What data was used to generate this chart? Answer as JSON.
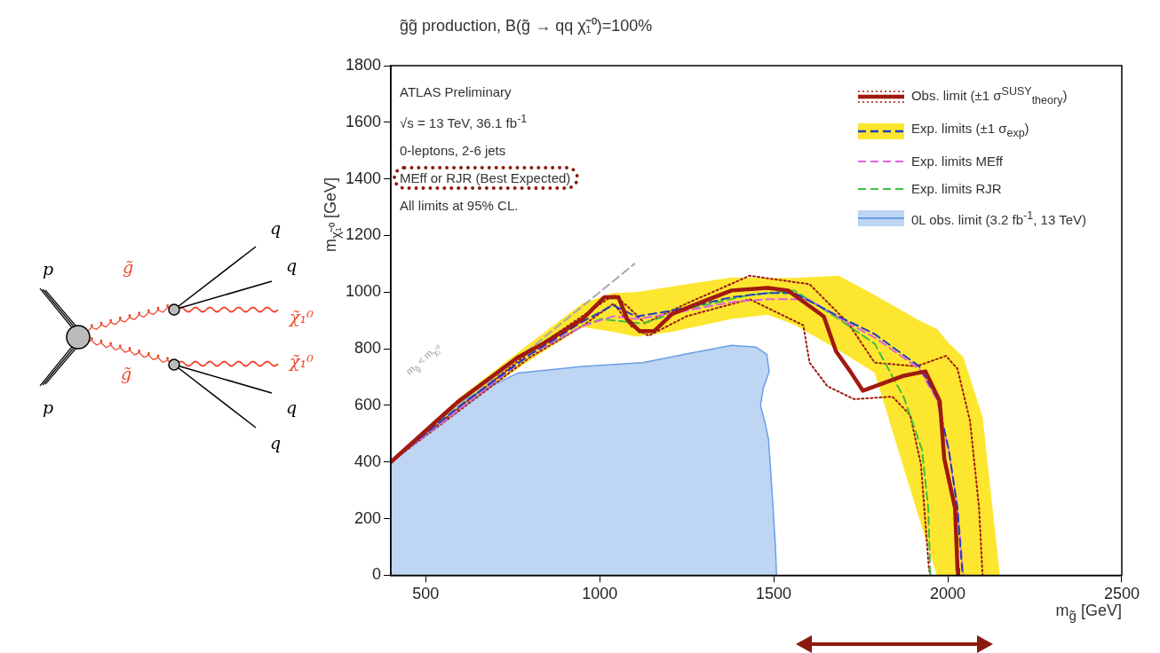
{
  "chart_data": {
    "type": "line",
    "title": "g̃g̃ production, B(g̃ → qq χ̃₁⁰)=100%",
    "xlabel": "m$_{g̃}$ [GeV]",
    "ylabel": "m$_{χ̃₁⁰}$ [GeV]",
    "xlim": [
      400,
      2500
    ],
    "xticks": [
      500,
      1000,
      1500,
      2000,
      2500
    ],
    "ylim": [
      0,
      1800
    ],
    "yticks": [
      0,
      200,
      400,
      600,
      800,
      1000,
      1200,
      1400,
      1600,
      1800
    ],
    "legend": "top right",
    "series": [
      {
        "name": "Obs. limit (±1 σ$^{SUSY}$$_{theory}$)",
        "color": "#a01a10",
        "x": [
          400,
          592,
          764,
          833,
          951,
          1013,
          1054,
          1079,
          1115,
          1156,
          1208,
          1295,
          1379,
          1482,
          1541,
          1644,
          1679,
          1720,
          1756,
          1874,
          1936,
          1977,
          1990,
          2021,
          2028,
          2030
        ],
        "values": [
          400,
          612,
          769,
          815,
          905,
          982,
          982,
          905,
          862,
          862,
          923,
          966,
          1006,
          1015,
          1006,
          914,
          791,
          720,
          652,
          705,
          720,
          615,
          412,
          237,
          22,
          0
        ]
      },
      {
        "name": "Exp. limits (±1 σ$_{exp}$)",
        "color": "#1f3fbf",
        "line_style": "dashed",
        "x": [
          400,
          600,
          800,
          950,
          1038,
          1105,
          1208,
          1379,
          1482,
          1559,
          1687,
          1790,
          1918,
          1969,
          2003,
          2028,
          2041,
          2045,
          2100,
          2150
        ],
        "values": [
          400,
          600,
          780,
          895,
          954,
          914,
          935,
          982,
          997,
          997,
          914,
          852,
          738,
          628,
          443,
          237,
          22,
          0,
          null,
          null
        ],
        "lower": [
          400,
          590,
          760,
          877,
          860,
          843,
          860,
          905,
          920,
          885,
          795,
          715,
          200,
          0,
          0,
          0,
          0,
          0,
          0,
          0
        ],
        "upper": [
          400,
          630,
          820,
          960,
          997,
          1000,
          1020,
          1052,
          1050,
          1050,
          1058,
          990,
          900,
          870,
          820,
          790,
          775,
          770,
          560,
          0
        ]
      },
      {
        "name": "Exp. limits MEff",
        "color": "#e060e0",
        "line_style": "dashed",
        "x": [
          400,
          800,
          950,
          1040,
          1105,
          1208,
          1379,
          1482,
          1600,
          1700,
          1790,
          1918,
          1969,
          2003,
          2028,
          2045
        ],
        "values": [
          400,
          780,
          880,
          915,
          905,
          925,
          965,
          975,
          975,
          900,
          840,
          730,
          620,
          440,
          237,
          0
        ]
      },
      {
        "name": "Exp. limits RJR",
        "color": "#40c040",
        "line_style": "dashed",
        "x": [
          400,
          800,
          950,
          1003,
          1123,
          1250,
          1431,
          1559,
          1687,
          1790,
          1874,
          1926,
          1944,
          1950
        ],
        "values": [
          400,
          780,
          880,
          905,
          889,
          940,
          990,
          1006,
          905,
          818,
          628,
          443,
          237,
          0
        ]
      },
      {
        "name": "0L obs. limit (3.2 fb$^{-1}$, 13 TeV)",
        "type": "area",
        "color": "#6a9fe6",
        "x": [
          400,
          585,
          764,
          951,
          1123,
          1251,
          1379,
          1449,
          1480,
          1487,
          1470,
          1462,
          1475,
          1485,
          1495,
          1505,
          1508
        ],
        "values": [
          400,
          606,
          714,
          738,
          751,
          782,
          812,
          806,
          780,
          720,
          660,
          600,
          540,
          480,
          300,
          100,
          0
        ]
      },
      {
        "color": "#a01a10",
        "line_style": "dotted",
        "x": [
          400,
          800,
          950,
          1040,
          1080,
          1130,
          1250,
          1431,
          1603,
          1713,
          1790,
          1910,
          1995,
          2028,
          2064,
          2090,
          2100
        ],
        "values": [
          400,
          790,
          915,
          990,
          950,
          890,
          960,
          1058,
          1028,
          892,
          751,
          738,
          775,
          729,
          545,
          237,
          0
        ]
      },
      {
        "color": "#a01a10",
        "line_style": "dotted",
        "x": [
          400,
          800,
          950,
          1040,
          1090,
          1141,
          1250,
          1431,
          1585,
          1603,
          1654,
          1731,
          1841,
          1892,
          1923,
          1946,
          1950
        ],
        "values": [
          400,
          770,
          880,
          960,
          880,
          846,
          915,
          975,
          883,
          751,
          668,
          622,
          631,
          566,
          391,
          22,
          0
        ]
      },
      {
        "color": "#a8a8a8",
        "line_style": "dashed",
        "x": [
          400,
          1100
        ],
        "values": [
          400,
          1100
        ]
      }
    ],
    "annotations": [
      "ATLAS Preliminary",
      "√s = 13 TeV, 36.1 fb$^{-1}$",
      "0-leptons, 2-6 jets",
      "MEff or RJR (Best Expected)",
      "All limits at 95% CL.",
      "m$_{g̃}$ < m$_{χ̃₁⁰}$",
      "p",
      "p",
      "q",
      "q",
      "q",
      "q",
      "g̃",
      "g̃",
      "χ̃₁⁰",
      "χ̃₁⁰"
    ]
  }
}
